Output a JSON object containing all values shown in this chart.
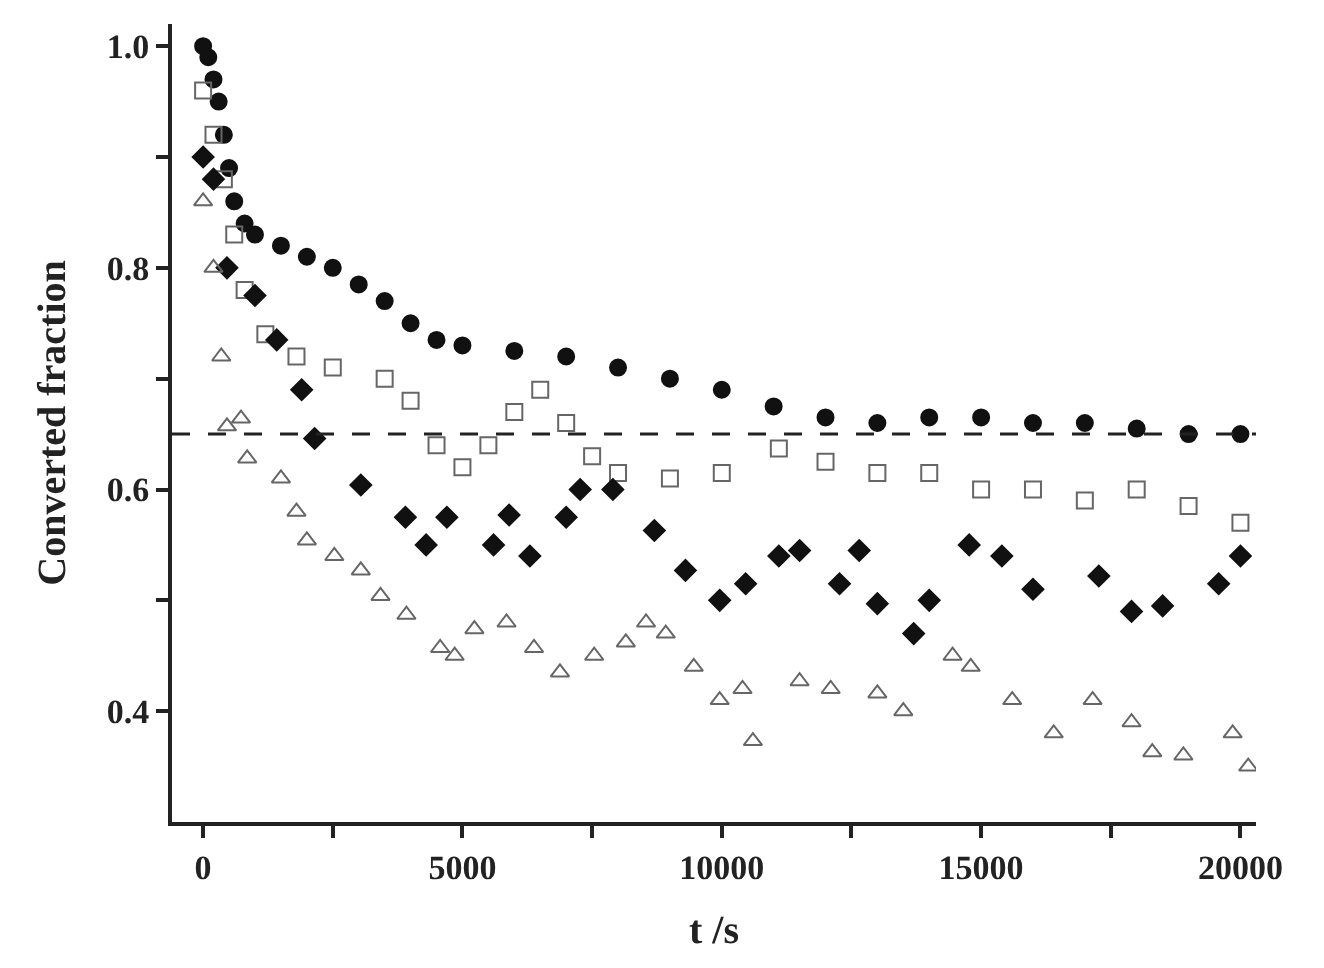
{
  "chart_data": {
    "type": "scatter",
    "xlabel": "t /s",
    "ylabel": "Converted fraction",
    "xlim": [
      -600,
      20300
    ],
    "ylim": [
      0.3,
      1.02
    ],
    "xticks": [
      0,
      {
        "value": 2500,
        "label": null
      },
      5000,
      {
        "value": 7500,
        "label": null
      },
      10000,
      {
        "value": 12500,
        "label": null
      },
      15000,
      {
        "value": 17500,
        "label": null
      },
      20000
    ],
    "yticks": [
      {
        "value": 0.4,
        "label": "0.4"
      },
      {
        "value": 0.5,
        "label": null
      },
      {
        "value": 0.6,
        "label": "0.6"
      },
      {
        "value": 0.7,
        "label": null
      },
      {
        "value": 0.8,
        "label": "0.8"
      },
      {
        "value": 0.9,
        "label": null
      },
      {
        "value": 1.0,
        "label": "1.0"
      }
    ],
    "ref_lines": [
      {
        "axis": "y",
        "value": 0.65,
        "color": "#222222",
        "line_style": "dashed"
      }
    ],
    "series": [
      {
        "color": "#111111",
        "marker": "circle",
        "x": [
          0,
          100,
          200,
          300,
          400,
          500,
          600,
          800,
          1000,
          1500,
          2000,
          2500,
          3000,
          3500,
          4000,
          4500,
          5000,
          6000,
          7000,
          8000,
          9000,
          10000,
          11000,
          12000,
          13000,
          14000,
          15000,
          16000,
          17000,
          18000,
          19000,
          20000
        ],
        "values": [
          1.0,
          0.99,
          0.97,
          0.95,
          0.92,
          0.89,
          0.86,
          0.84,
          0.83,
          0.82,
          0.81,
          0.8,
          0.785,
          0.77,
          0.75,
          0.735,
          0.73,
          0.725,
          0.72,
          0.71,
          0.7,
          0.69,
          0.675,
          0.665,
          0.66,
          0.665,
          0.665,
          0.66,
          0.66,
          0.655,
          0.65,
          0.65
        ]
      },
      {
        "color": "#666666",
        "marker": "square",
        "x": [
          0,
          200,
          400,
          600,
          800,
          1200,
          1800,
          2500,
          3500,
          4000,
          4500,
          5000,
          5500,
          6000,
          6500,
          7000,
          7500,
          8000,
          9000,
          10000,
          11100,
          12000,
          13000,
          14000,
          15000,
          16000,
          17000,
          18000,
          19000,
          20000
        ],
        "values": [
          0.96,
          0.92,
          0.88,
          0.83,
          0.78,
          0.74,
          0.72,
          0.71,
          0.7,
          0.68,
          0.64,
          0.62,
          0.64,
          0.67,
          0.69,
          0.66,
          0.63,
          0.615,
          0.61,
          0.615,
          0.637,
          0.625,
          0.615,
          0.615,
          0.6,
          0.6,
          0.59,
          0.6,
          0.585,
          0.57
        ]
      },
      {
        "color": "#111111",
        "marker": "diamond",
        "x": [
          0,
          200,
          460,
          1000,
          1420,
          1900,
          2150,
          3040,
          3900,
          4300,
          4700,
          5600,
          5900,
          6300,
          7000,
          7270,
          7900,
          8700,
          9300,
          9960,
          10460,
          11100,
          11500,
          12270,
          12650,
          13000,
          13700,
          14000,
          14770,
          15400,
          16000,
          17270,
          17900,
          18500,
          19580,
          20000
        ],
        "values": [
          0.9,
          0.88,
          0.8,
          0.775,
          0.735,
          0.69,
          0.646,
          0.604,
          0.575,
          0.55,
          0.575,
          0.55,
          0.577,
          0.54,
          0.575,
          0.6,
          0.6,
          0.563,
          0.527,
          0.5,
          0.515,
          0.54,
          0.545,
          0.515,
          0.545,
          0.497,
          0.47,
          0.5,
          0.55,
          0.54,
          0.51,
          0.522,
          0.49,
          0.495,
          0.515,
          0.54
        ]
      },
      {
        "color": "#666666",
        "marker": "triangle",
        "x": [
          0,
          200,
          350,
          460,
          730,
          850,
          1500,
          1800,
          2000,
          2530,
          3040,
          3420,
          3920,
          4570,
          4850,
          5230,
          5850,
          6380,
          6880,
          7540,
          8150,
          8540,
          8920,
          9460,
          9960,
          10400,
          10600,
          11500,
          12100,
          13000,
          13500,
          14450,
          14800,
          15600,
          16400,
          17150,
          17900,
          18300,
          18900,
          19850,
          20150
        ],
        "values": [
          0.86,
          0.8,
          0.72,
          0.657,
          0.664,
          0.628,
          0.61,
          0.58,
          0.554,
          0.54,
          0.527,
          0.504,
          0.487,
          0.457,
          0.45,
          0.474,
          0.48,
          0.457,
          0.435,
          0.45,
          0.462,
          0.48,
          0.47,
          0.44,
          0.41,
          0.42,
          0.373,
          0.427,
          0.42,
          0.416,
          0.4,
          0.45,
          0.44,
          0.41,
          0.38,
          0.41,
          0.39,
          0.363,
          0.36,
          0.38,
          0.35
        ]
      }
    ]
  }
}
